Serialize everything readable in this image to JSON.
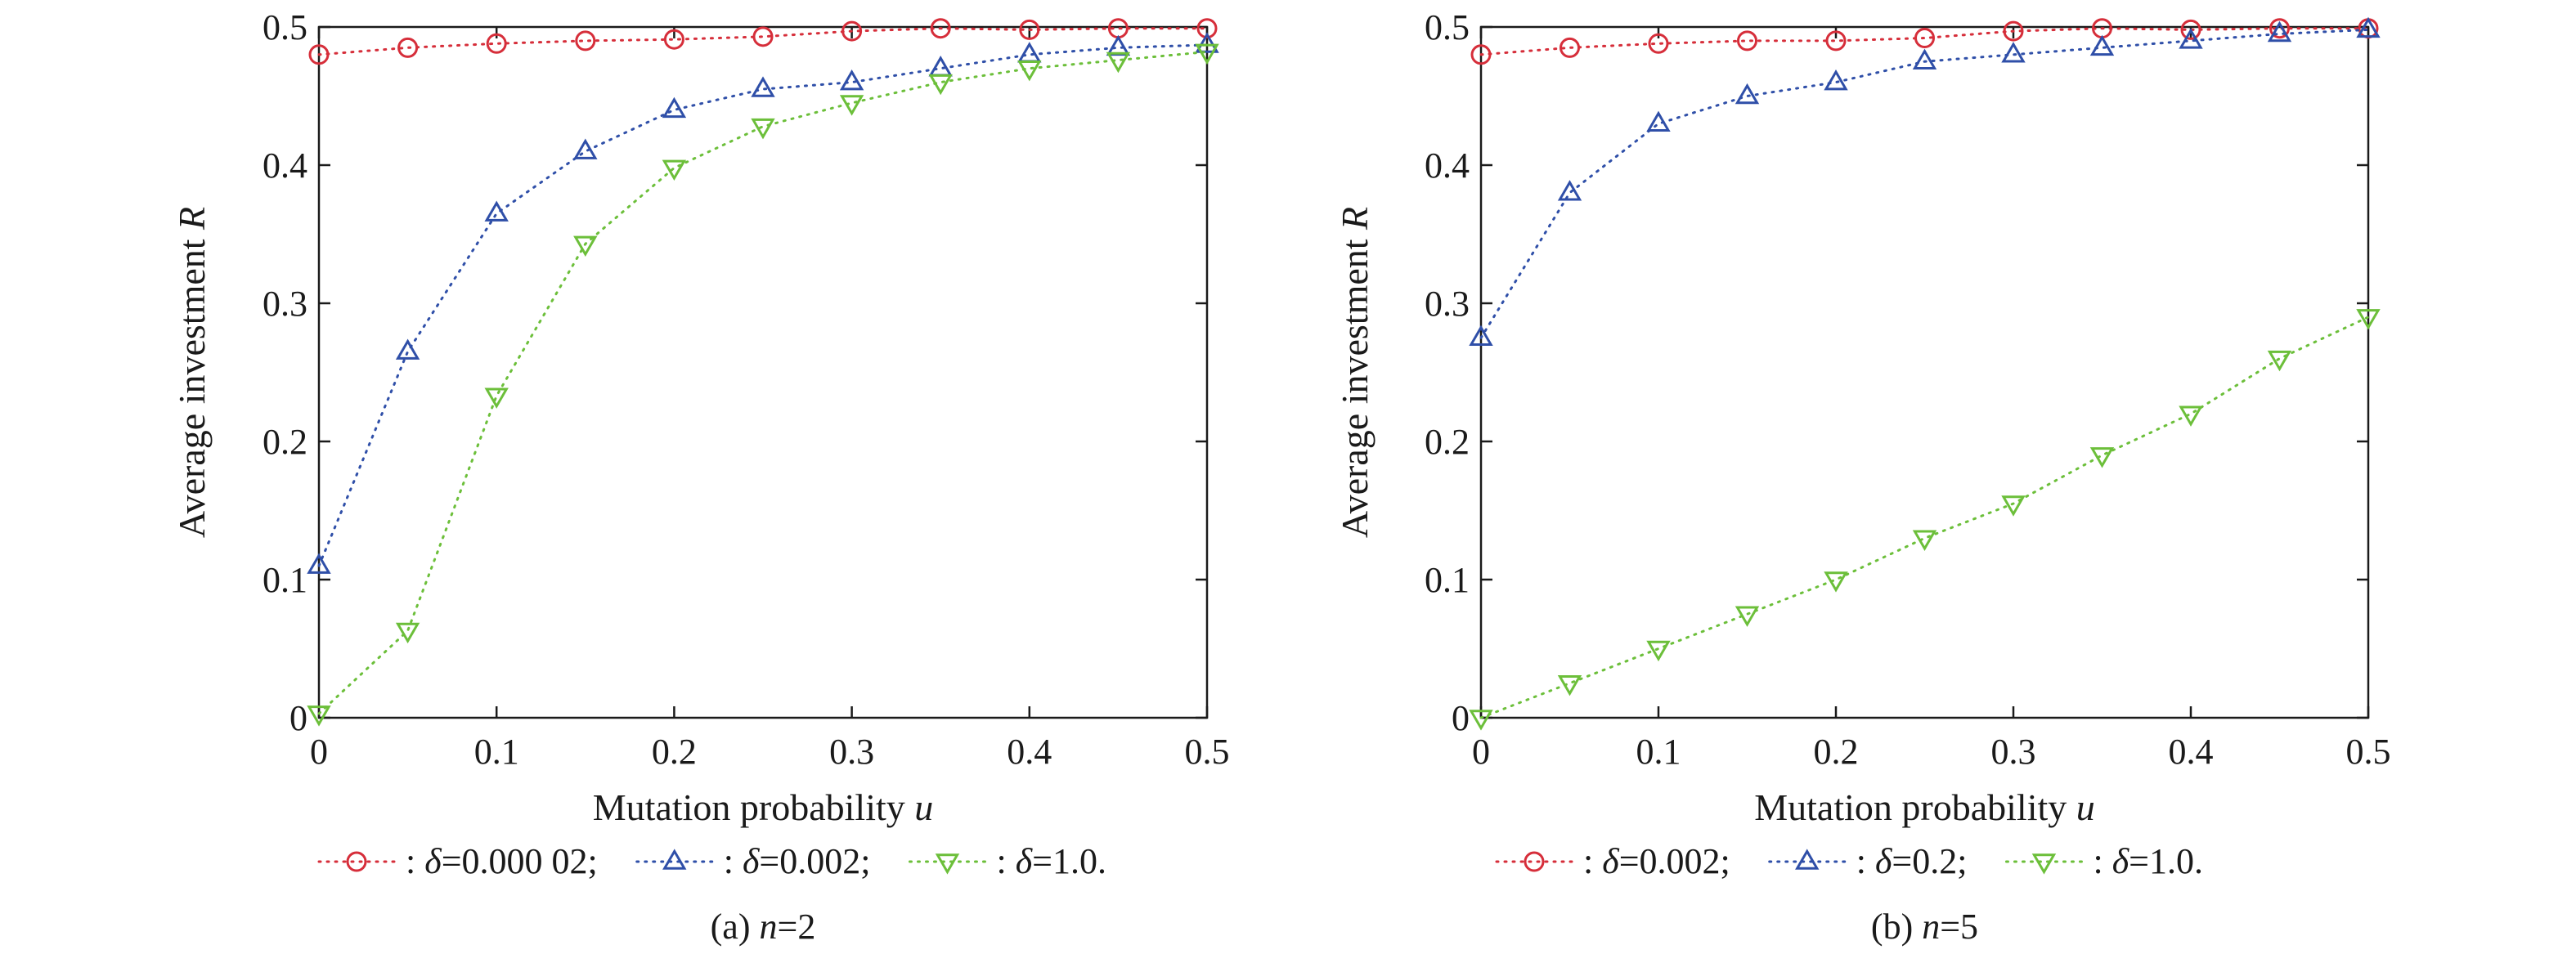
{
  "colors": {
    "red": "#d62e3a",
    "blue": "#2f4fa8",
    "green": "#6cbf3a",
    "axis": "#1a1a1a"
  },
  "chart_data": [
    {
      "type": "line",
      "caption": {
        "prefix": "(a) ",
        "var": "n",
        "rest": "=2"
      },
      "xlabel": {
        "text": "Mutation probability ",
        "var": "u"
      },
      "ylabel": {
        "text": "Average investment ",
        "var": "R"
      },
      "xlim": [
        0,
        0.5
      ],
      "ylim": [
        0,
        0.5
      ],
      "xticks": [
        0,
        0.1,
        0.2,
        0.3,
        0.4,
        0.5
      ],
      "xtick_labels": [
        "0",
        "0.1",
        "0.2",
        "0.3",
        "0.4",
        "0.5"
      ],
      "yticks": [
        0,
        0.1,
        0.2,
        0.3,
        0.4,
        0.5
      ],
      "ytick_labels": [
        "0",
        "0.1",
        "0.2",
        "0.3",
        "0.4",
        "0.5"
      ],
      "x": [
        0,
        0.05,
        0.1,
        0.15,
        0.2,
        0.25,
        0.3,
        0.35,
        0.4,
        0.45,
        0.5
      ],
      "series": [
        {
          "name": ": δ=0.000 02;",
          "sym": "δ",
          "value": "=0.000 02;",
          "color": "red",
          "marker": "circle",
          "values": [
            0.48,
            0.485,
            0.488,
            0.49,
            0.491,
            0.493,
            0.497,
            0.499,
            0.498,
            0.499,
            0.499
          ]
        },
        {
          "name": ": δ=0.002;",
          "sym": "δ",
          "value": "=0.002;",
          "color": "blue",
          "marker": "triangle-up",
          "values": [
            0.11,
            0.265,
            0.365,
            0.41,
            0.44,
            0.455,
            0.46,
            0.47,
            0.48,
            0.485,
            0.487
          ]
        },
        {
          "name": ": δ=1.0.",
          "sym": "δ",
          "value": "=1.0.",
          "color": "green",
          "marker": "triangle-down",
          "values": [
            0.003,
            0.063,
            0.233,
            0.343,
            0.398,
            0.428,
            0.445,
            0.46,
            0.47,
            0.476,
            0.482
          ]
        }
      ]
    },
    {
      "type": "line",
      "caption": {
        "prefix": "(b) ",
        "var": "n",
        "rest": "=5"
      },
      "xlabel": {
        "text": "Mutation probability ",
        "var": "u"
      },
      "ylabel": {
        "text": "Average investment ",
        "var": "R"
      },
      "xlim": [
        0,
        0.5
      ],
      "ylim": [
        0,
        0.5
      ],
      "xticks": [
        0,
        0.1,
        0.2,
        0.3,
        0.4,
        0.5
      ],
      "xtick_labels": [
        "0",
        "0.1",
        "0.2",
        "0.3",
        "0.4",
        "0.5"
      ],
      "yticks": [
        0,
        0.1,
        0.2,
        0.3,
        0.4,
        0.5
      ],
      "ytick_labels": [
        "0",
        "0.1",
        "0.2",
        "0.3",
        "0.4",
        "0.5"
      ],
      "x": [
        0,
        0.05,
        0.1,
        0.15,
        0.2,
        0.25,
        0.3,
        0.35,
        0.4,
        0.45,
        0.5
      ],
      "series": [
        {
          "name": ": δ=0.002;",
          "sym": "δ",
          "value": "=0.002;",
          "color": "red",
          "marker": "circle",
          "values": [
            0.48,
            0.485,
            0.488,
            0.49,
            0.49,
            0.492,
            0.497,
            0.499,
            0.498,
            0.499,
            0.499
          ]
        },
        {
          "name": ": δ=0.2;",
          "sym": "δ",
          "value": "=0.2;",
          "color": "blue",
          "marker": "triangle-up",
          "values": [
            0.275,
            0.38,
            0.43,
            0.45,
            0.46,
            0.475,
            0.48,
            0.485,
            0.49,
            0.495,
            0.498
          ]
        },
        {
          "name": ": δ=1.0.",
          "sym": "δ",
          "value": "=1.0.",
          "color": "green",
          "marker": "triangle-down",
          "values": [
            0.0,
            0.025,
            0.05,
            0.075,
            0.1,
            0.13,
            0.155,
            0.19,
            0.22,
            0.26,
            0.29
          ]
        }
      ]
    }
  ]
}
